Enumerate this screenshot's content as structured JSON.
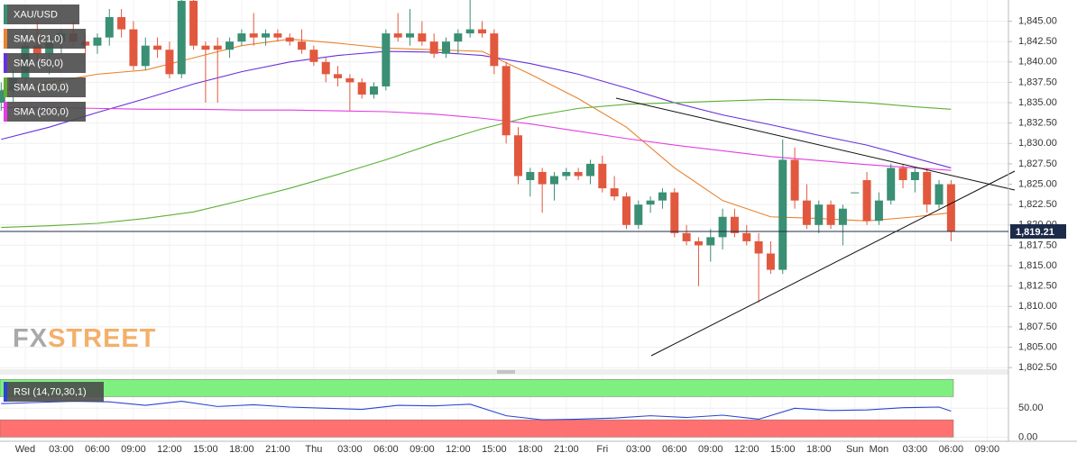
{
  "chart_data": {
    "type": "candlestick",
    "categories": [
      null,
      null,
      "Wed",
      null,
      null,
      "03:00",
      null,
      null,
      "06:00",
      null,
      null,
      "09:00",
      null,
      null,
      "12:00",
      null,
      null,
      "15:00",
      null,
      null,
      "18:00",
      null,
      null,
      "21:00",
      null,
      null,
      "Thu",
      null,
      null,
      "03:00",
      null,
      null,
      "06:00",
      null,
      null,
      "09:00",
      null,
      null,
      "12:00",
      null,
      null,
      "15:00",
      null,
      null,
      "18:00",
      null,
      null,
      "21:00",
      null,
      null,
      "Fri",
      null,
      null,
      "03:00",
      null,
      null,
      "06:00",
      null,
      null,
      "09:00",
      null,
      null,
      "12:00",
      null,
      null,
      "15:00",
      null,
      null,
      "18:00",
      null,
      null,
      "Sun",
      null,
      "Mon",
      null,
      null,
      "03:00",
      null,
      null,
      "06:00",
      null,
      null,
      "09:00"
    ],
    "candles": {
      "name": "XAU/USD",
      "up_color": "#3a8f74",
      "down_color": "#e2583e",
      "open": [
        1835,
        1836.5,
        1838,
        1842,
        1841,
        1842.5,
        1843.5,
        1842.5,
        1842,
        1843,
        1845.5,
        1844,
        1839.5,
        1842,
        1841.5,
        1838.5,
        1847.5,
        1842,
        1842,
        1841.5,
        1842.5,
        1843.5,
        1843,
        1843.5,
        1843,
        1842.5,
        1841.5,
        1840,
        1838.5,
        1838,
        1837.5,
        1836,
        1837,
        1843.5,
        1843,
        1843.5,
        1842.5,
        1841,
        1842.5,
        1843.5,
        1844,
        1843.5,
        1839.5,
        1831,
        1825.5,
        1826.5,
        1825,
        1826,
        1826.5,
        1826,
        1827.5,
        1824.5,
        1823.5,
        1820,
        1822.5,
        1823,
        1824,
        1819,
        1818,
        1817.5,
        1818.5,
        1821,
        1819,
        1818,
        1816.5,
        1814.5,
        1828,
        1823,
        1820,
        1822.5,
        1820,
        1824,
        1825.5,
        1820.5,
        1823,
        1827,
        1825.5,
        1826.5,
        1822.5,
        1825,
        null,
        null,
        null
      ],
      "high": [
        1837.5,
        1839,
        1843,
        1845,
        1843,
        1844,
        1845,
        1843.5,
        1843.5,
        1846.5,
        1846.5,
        1845,
        1843,
        1843,
        1842.5,
        1848,
        1848,
        1842.5,
        1843,
        1843,
        1844,
        1846,
        1844,
        1844,
        1843.5,
        1844,
        1842,
        1840.5,
        1839.5,
        1838.5,
        1838,
        1837.5,
        1844,
        1846,
        1846.5,
        1845,
        1843.5,
        1843,
        1844,
        1848,
        1845,
        1844,
        1840,
        1832,
        1827,
        1827,
        1826.5,
        1827,
        1827,
        1828,
        1828.5,
        1826,
        1824,
        1823,
        1823.5,
        1824.5,
        1824.5,
        1820,
        1818.5,
        1819.5,
        1822,
        1822,
        1820,
        1819,
        1818,
        1830.5,
        1829.5,
        1825,
        1823,
        1823,
        1822.5,
        1824,
        1826.5,
        1824,
        1827.5,
        1827.5,
        1827,
        1827,
        1825.5,
        1825.5,
        null,
        null,
        null
      ],
      "low": [
        1834,
        1835,
        1837,
        1840,
        1838.5,
        1841,
        1842,
        1841,
        1841,
        1842,
        1843,
        1839,
        1839,
        1840.5,
        1838,
        1838,
        1841.5,
        1835,
        1835,
        1840.5,
        1842,
        1842,
        1842,
        1842.5,
        1842,
        1841,
        1839.5,
        1837.5,
        1837,
        1834,
        1835.5,
        1835.5,
        1836.5,
        1842.5,
        1842,
        1842,
        1840.5,
        1840.5,
        1841,
        1843,
        1843,
        1838.5,
        1830,
        1825,
        1823.5,
        1821.5,
        1823,
        1825.5,
        1825.5,
        1825,
        1824,
        1823,
        1819.5,
        1819.5,
        1821.5,
        1822,
        1818.5,
        1817.5,
        1812.5,
        1815.5,
        1817,
        1818.5,
        1817.5,
        1810.5,
        1814,
        1814,
        1822,
        1819.5,
        1819,
        1819.5,
        1817.5,
        1824,
        1820,
        1820,
        1822.5,
        1824.5,
        1824,
        1821.5,
        1822,
        1818,
        null,
        null,
        null
      ],
      "close": [
        1836.5,
        1838,
        1842,
        1841,
        1842.5,
        1843.5,
        1842.5,
        1842,
        1843,
        1845.5,
        1844,
        1839.5,
        1842,
        1841.5,
        1838.5,
        1847.5,
        1842,
        1841.5,
        1841.5,
        1842.5,
        1843.5,
        1843,
        1843.5,
        1843,
        1842.5,
        1841.5,
        1840,
        1838.5,
        1838,
        1837.5,
        1836,
        1837,
        1843.5,
        1843,
        1843.5,
        1842.5,
        1841,
        1842.5,
        1843.5,
        1844,
        1843.5,
        1839.5,
        1831,
        1826,
        1826.5,
        1825,
        1826,
        1826.5,
        1826,
        1827.5,
        1824.5,
        1823.5,
        1820,
        1822.5,
        1823,
        1824,
        1819,
        1818,
        1817.5,
        1818.5,
        1821,
        1819,
        1818,
        1816.5,
        1814.5,
        1828,
        1823,
        1820,
        1822.5,
        1820,
        1822,
        1824,
        1820.5,
        1823,
        1827,
        1825.5,
        1826.5,
        1822.5,
        1825,
        1819.21,
        null,
        null,
        null
      ]
    },
    "indicators": [
      {
        "name": "SMA (21,0)",
        "color": "#e8832e",
        "x": [
          0,
          4,
          8,
          12,
          16,
          20,
          24,
          28,
          32,
          36,
          40,
          44,
          48,
          52,
          56,
          60,
          64,
          68,
          72,
          76,
          79
        ],
        "values": [
          1836.5,
          1837.5,
          1838.5,
          1839,
          1840.5,
          1842,
          1842.8,
          1842.3,
          1841.7,
          1841.5,
          1841.3,
          1838.5,
          1835.5,
          1832,
          1827,
          1823,
          1821,
          1820.8,
          1820.5,
          1821,
          1821.5
        ]
      },
      {
        "name": "SMA (50,0)",
        "color": "#6a2fdc",
        "x": [
          0,
          4,
          8,
          12,
          16,
          20,
          24,
          28,
          32,
          36,
          40,
          44,
          48,
          52,
          56,
          60,
          64,
          68,
          72,
          76,
          79
        ],
        "values": [
          1830.5,
          1832,
          1833.8,
          1835.5,
          1837.3,
          1838.8,
          1840,
          1840.8,
          1841.3,
          1841.2,
          1840.8,
          1839.8,
          1838.5,
          1836.8,
          1835,
          1833.5,
          1832.3,
          1831,
          1829.8,
          1828.2,
          1827
        ]
      },
      {
        "name": "SMA (100,0)",
        "color": "#5cb034",
        "x": [
          0,
          4,
          8,
          12,
          16,
          20,
          24,
          28,
          32,
          36,
          40,
          44,
          48,
          52,
          56,
          60,
          64,
          68,
          72,
          76,
          79
        ],
        "values": [
          1819.7,
          1819.9,
          1820.2,
          1820.8,
          1821.6,
          1823,
          1824.5,
          1826.2,
          1828,
          1830,
          1831.8,
          1833.3,
          1834.3,
          1834.8,
          1835,
          1835.2,
          1835.4,
          1835.3,
          1835,
          1834.5,
          1834.2
        ]
      },
      {
        "name": "SMA (200,0)",
        "color": "#e23ee2",
        "x": [
          0,
          4,
          8,
          12,
          16,
          20,
          24,
          28,
          32,
          36,
          40,
          44,
          48,
          52,
          56,
          60,
          64,
          68,
          72,
          76,
          79
        ],
        "values": [
          1834.4,
          1834.4,
          1834.3,
          1834.2,
          1834.2,
          1834.1,
          1834.1,
          1834,
          1833.9,
          1833.6,
          1833.1,
          1832.4,
          1831.5,
          1830.6,
          1829.8,
          1829.1,
          1828.4,
          1827.9,
          1827.4,
          1827,
          1826.7
        ]
      }
    ],
    "ylim": [
      1802.3,
      1847.6
    ],
    "yticks": [
      {
        "value": 1845,
        "label": "1,845.00"
      },
      {
        "value": 1842.5,
        "label": "1,842.50"
      },
      {
        "value": 1840,
        "label": "1,840.00"
      },
      {
        "value": 1837.5,
        "label": "1,837.50"
      },
      {
        "value": 1835,
        "label": "1,835.00"
      },
      {
        "value": 1832.5,
        "label": "1,832.50"
      },
      {
        "value": 1830,
        "label": "1,830.00"
      },
      {
        "value": 1827.5,
        "label": "1,827.50"
      },
      {
        "value": 1825,
        "label": "1,825.00"
      },
      {
        "value": 1822.5,
        "label": "1,822.50"
      },
      {
        "value": 1820,
        "label": "1,820.00"
      },
      {
        "value": 1817.5,
        "label": "1,817.50"
      },
      {
        "value": 1815,
        "label": "1,815.00"
      },
      {
        "value": 1812.5,
        "label": "1,812.50"
      },
      {
        "value": 1810,
        "label": "1,810.00"
      },
      {
        "value": 1807.5,
        "label": "1,807.50"
      },
      {
        "value": 1805,
        "label": "1,805.00"
      },
      {
        "value": 1802.5,
        "label": "1,802.50"
      }
    ],
    "grid": true,
    "last_price": {
      "value": 1819.21,
      "label": "1,819.21",
      "color": "#1d2b4a"
    },
    "watermark": [
      "FX",
      "STREET"
    ],
    "rsi": {
      "name": "RSI (14,70,30,1)",
      "color": "#2846d2",
      "x": [
        0,
        3,
        6,
        9,
        12,
        15,
        18,
        21,
        24,
        27,
        30,
        33,
        36,
        39,
        42,
        45,
        48,
        51,
        54,
        57,
        60,
        63,
        66,
        69,
        72,
        75,
        78,
        79
      ],
      "values": [
        58,
        60,
        62,
        61,
        55,
        62,
        53,
        56,
        52,
        50,
        48,
        55,
        54,
        57,
        37,
        30,
        31,
        33,
        37,
        34,
        38,
        31,
        50,
        46,
        47,
        51,
        52,
        45
      ],
      "y2lim": [
        -15,
        105
      ],
      "y2ticks": [
        {
          "value": 0,
          "label": "0.00"
        },
        {
          "value": 50,
          "label": "50.00"
        }
      ],
      "bands": [
        {
          "range": [
            70,
            100
          ],
          "color": "#7ff07f"
        },
        {
          "range": [
            0,
            30
          ],
          "color": "#ff7070"
        }
      ]
    }
  }
}
